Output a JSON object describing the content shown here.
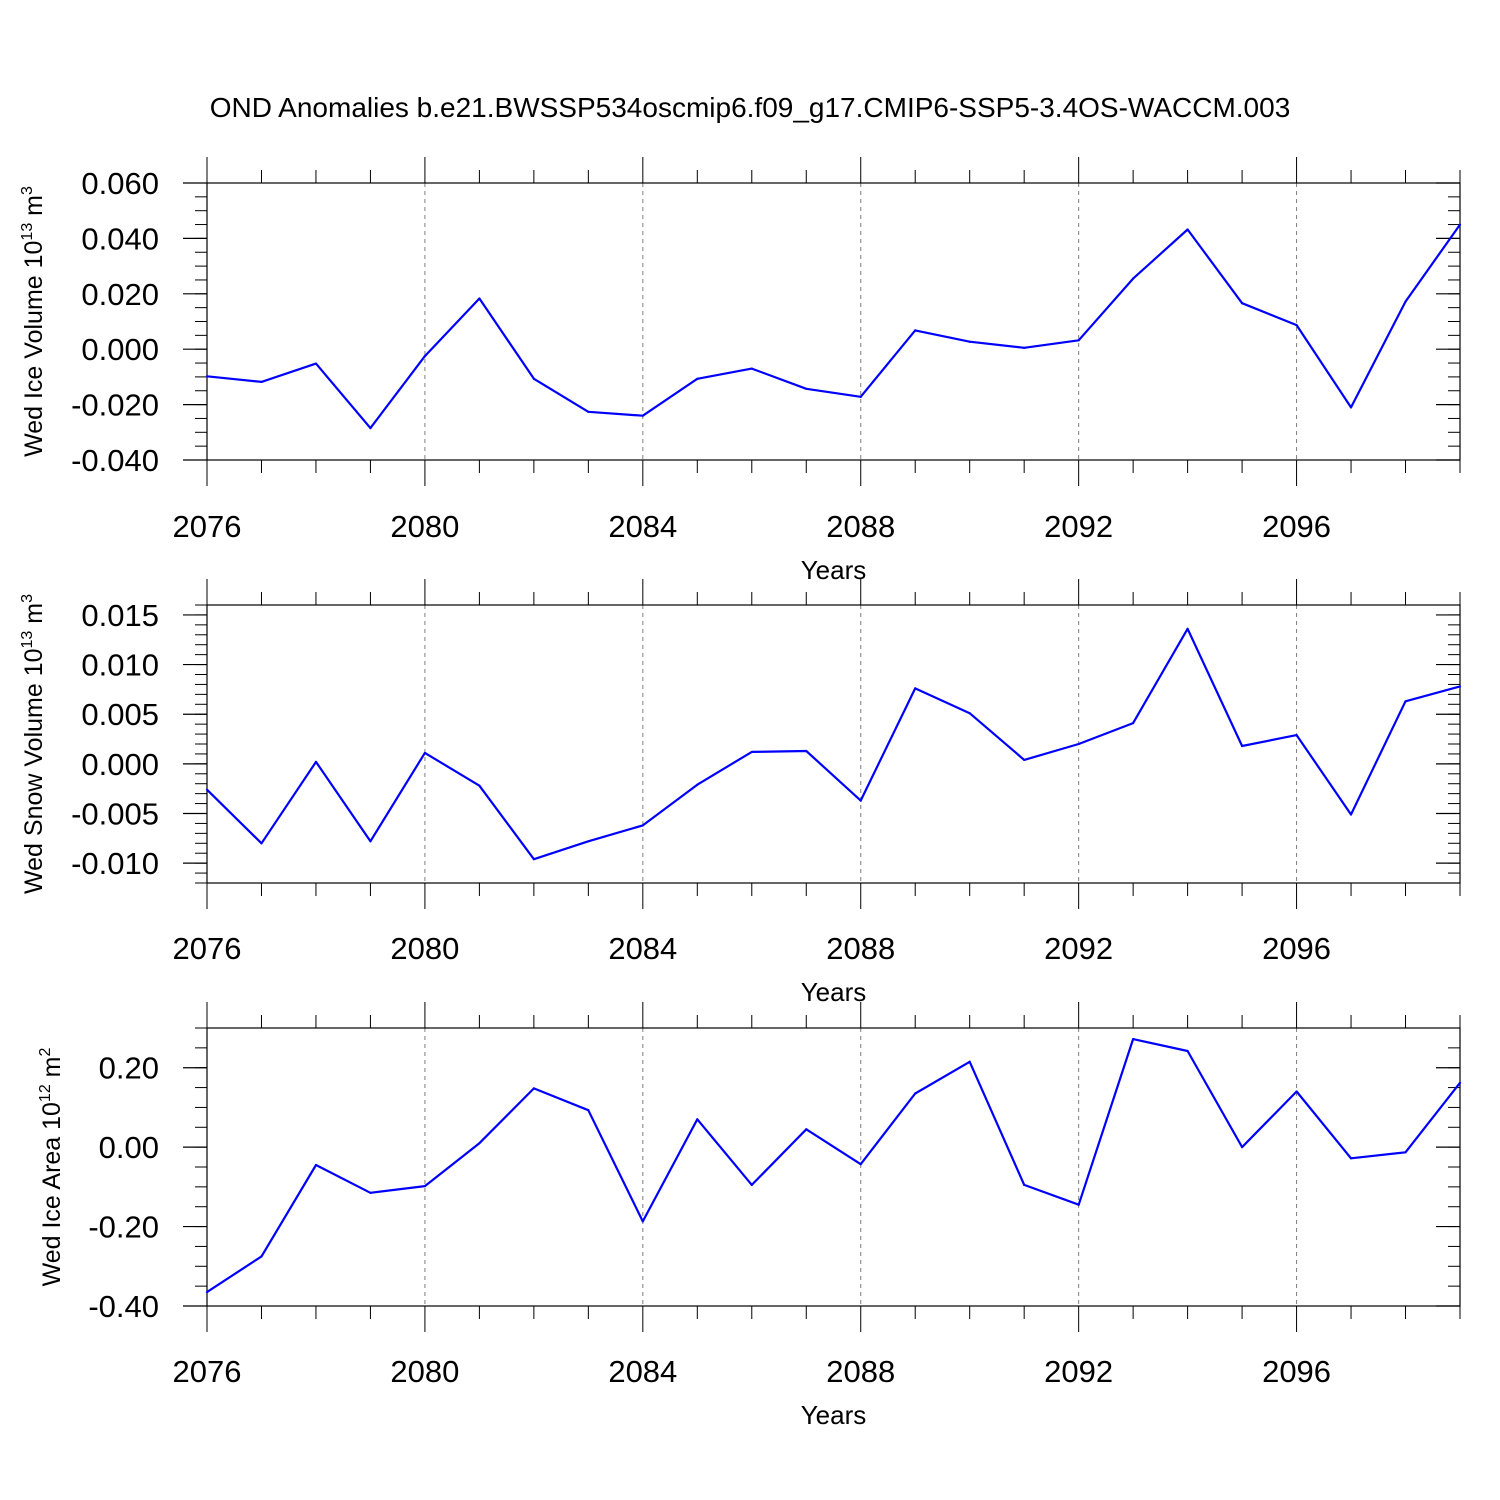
{
  "title": "OND Anomalies b.e21.BWSSP534oscmip6.f09_g17.CMIP6-SSP5-3.4OS-WACCM.003",
  "colors": {
    "line": "#0000ff",
    "axis": "#000000",
    "grid": "#7f7f7f"
  },
  "chart_data": [
    {
      "type": "line",
      "id": "ice-volume",
      "ylabel": "Wed Ice Volume 10",
      "ylabel_exp": "13",
      "ylabel_unit": " m",
      "ylabel_unit_exp": "3",
      "xlabel": "Years",
      "xlim": [
        2076,
        2099
      ],
      "ylim": [
        -0.04,
        0.06
      ],
      "yticks": [
        -0.04,
        -0.02,
        0.0,
        0.02,
        0.04,
        0.06
      ],
      "ytick_labels": [
        "-0.040",
        "-0.020",
        "0.000",
        "0.020",
        "0.040",
        "0.060"
      ],
      "yminor_step": 0.005,
      "xticks": [
        2076,
        2080,
        2084,
        2088,
        2092,
        2096
      ],
      "xtick_labels": [
        "2076",
        "2080",
        "2084",
        "2088",
        "2092",
        "2096"
      ],
      "grid_x": [
        2080,
        2084,
        2088,
        2092,
        2096
      ],
      "x": [
        2076,
        2077,
        2078,
        2079,
        2080,
        2081,
        2082,
        2083,
        2084,
        2085,
        2086,
        2087,
        2088,
        2089,
        2090,
        2091,
        2092,
        2093,
        2094,
        2095,
        2096,
        2097,
        2098,
        2099
      ],
      "values": [
        -0.0098,
        -0.0118,
        -0.0052,
        -0.0285,
        -0.0025,
        0.0183,
        -0.0107,
        -0.0226,
        -0.024,
        -0.0107,
        -0.007,
        -0.0143,
        -0.0172,
        0.0068,
        0.0027,
        0.0005,
        0.0032,
        0.0255,
        0.0432,
        0.0166,
        0.0087,
        -0.021,
        0.0172,
        0.045
      ]
    },
    {
      "type": "line",
      "id": "snow-volume",
      "ylabel": "Wed Snow Volume 10",
      "ylabel_exp": "13",
      "ylabel_unit": " m",
      "ylabel_unit_exp": "3",
      "xlabel": "Years",
      "xlim": [
        2076,
        2099
      ],
      "ylim": [
        -0.012,
        0.016
      ],
      "yticks": [
        -0.01,
        -0.005,
        0.0,
        0.005,
        0.01,
        0.015
      ],
      "ytick_labels": [
        "-0.010",
        "-0.005",
        "0.000",
        "0.005",
        "0.010",
        "0.015"
      ],
      "yminor_step": 0.001,
      "xticks": [
        2076,
        2080,
        2084,
        2088,
        2092,
        2096
      ],
      "xtick_labels": [
        "2076",
        "2080",
        "2084",
        "2088",
        "2092",
        "2096"
      ],
      "grid_x": [
        2080,
        2084,
        2088,
        2092,
        2096
      ],
      "x": [
        2076,
        2077,
        2078,
        2079,
        2080,
        2081,
        2082,
        2083,
        2084,
        2085,
        2086,
        2087,
        2088,
        2089,
        2090,
        2091,
        2092,
        2093,
        2094,
        2095,
        2096,
        2097,
        2098,
        2099
      ],
      "values": [
        -0.0026,
        -0.008,
        0.0002,
        -0.0078,
        0.0011,
        -0.0022,
        -0.0096,
        -0.0078,
        -0.0062,
        -0.0021,
        0.0012,
        0.0013,
        -0.0037,
        0.0076,
        0.0051,
        0.0004,
        0.002,
        0.0041,
        0.0136,
        0.0018,
        0.0029,
        -0.0051,
        0.0063,
        0.0078
      ]
    },
    {
      "type": "line",
      "id": "ice-area",
      "ylabel": "Wed Ice Area 10",
      "ylabel_exp": "12",
      "ylabel_unit": " m",
      "ylabel_unit_exp": "2",
      "xlabel": "Years",
      "xlim": [
        2076,
        2099
      ],
      "ylim": [
        -0.4,
        0.3
      ],
      "yticks": [
        -0.4,
        -0.2,
        0.0,
        0.2
      ],
      "ytick_labels": [
        "-0.40",
        "-0.20",
        "0.00",
        "0.20"
      ],
      "yminor_step": 0.05,
      "xticks": [
        2076,
        2080,
        2084,
        2088,
        2092,
        2096
      ],
      "xtick_labels": [
        "2076",
        "2080",
        "2084",
        "2088",
        "2092",
        "2096"
      ],
      "grid_x": [
        2080,
        2084,
        2088,
        2092,
        2096
      ],
      "x": [
        2076,
        2077,
        2078,
        2079,
        2080,
        2081,
        2082,
        2083,
        2084,
        2085,
        2086,
        2087,
        2088,
        2089,
        2090,
        2091,
        2092,
        2093,
        2094,
        2095,
        2096,
        2097,
        2098,
        2099
      ],
      "values": [
        -0.365,
        -0.275,
        -0.045,
        -0.115,
        -0.098,
        0.01,
        0.148,
        0.093,
        -0.187,
        0.07,
        -0.095,
        0.045,
        -0.043,
        0.135,
        0.215,
        -0.095,
        -0.145,
        0.272,
        0.242,
        0.0,
        0.14,
        -0.028,
        -0.013,
        0.162
      ]
    }
  ]
}
